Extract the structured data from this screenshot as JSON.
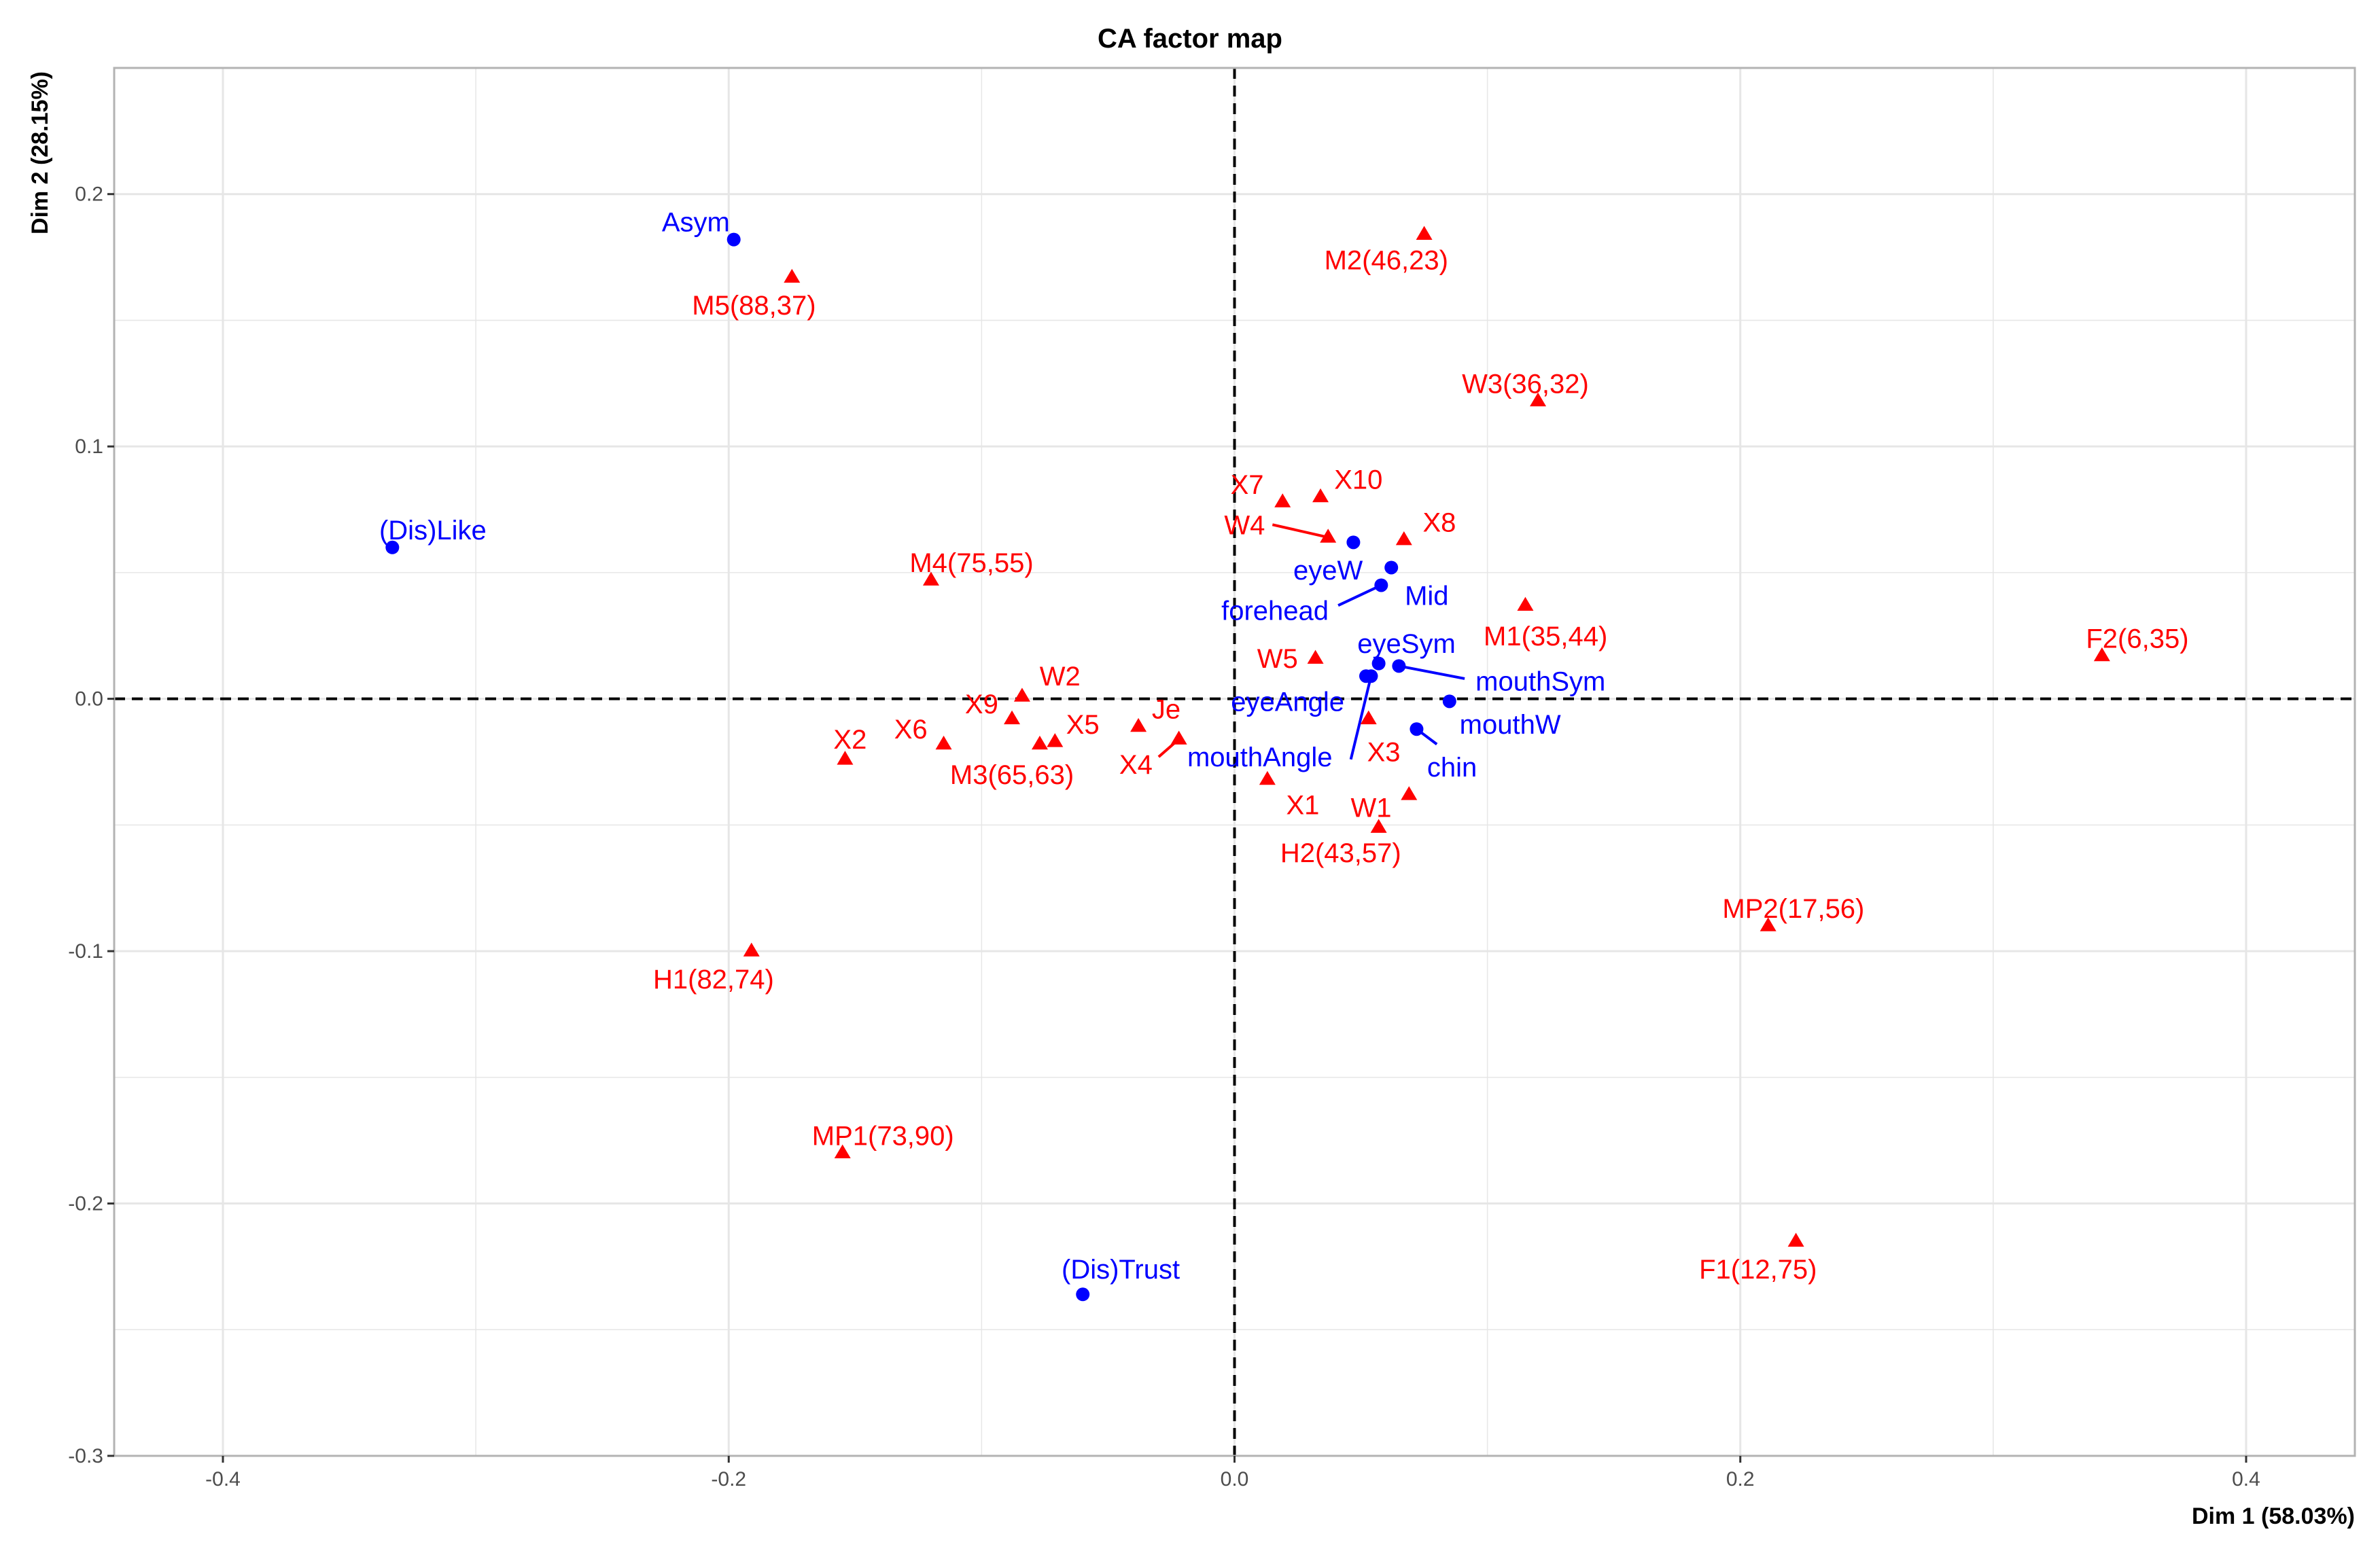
{
  "chart_data": {
    "type": "scatter",
    "title": "CA factor map",
    "xlabel": "Dim 1 (58.03%)",
    "ylabel": "Dim 2 (28.15%)",
    "xlim": [
      -0.443,
      0.443
    ],
    "ylim": [
      -0.3,
      0.25
    ],
    "x_ticks": [
      -0.4,
      -0.2,
      0.0,
      0.2,
      0.4
    ],
    "x_tick_labels": [
      "-0.4",
      "-0.2",
      "0.0",
      "0.2",
      "0.4"
    ],
    "y_ticks": [
      -0.3,
      -0.2,
      -0.1,
      0.0,
      0.1,
      0.2
    ],
    "y_tick_labels": [
      "-0.3",
      "-0.2",
      "-0.1",
      "0.0",
      "0.1",
      "0.2"
    ],
    "grid": true,
    "reference_lines": {
      "x": 0,
      "y": 0,
      "style": "dashed"
    },
    "colors": {
      "rows": "#ff0000",
      "columns": "#0000ff",
      "grid": "#e6e6e6",
      "border": "#b3b3b3",
      "tick_text": "#4d4d4d"
    },
    "series": [
      {
        "name": "rows",
        "marker": "triangle",
        "color": "#ff0000",
        "points": [
          {
            "label": "M2(46,23)",
            "x": 0.075,
            "y": 0.184,
            "lx": 0.06,
            "ly": 0.174
          },
          {
            "label": "M5(88,37)",
            "x": -0.175,
            "y": 0.167,
            "lx": -0.19,
            "ly": 0.156
          },
          {
            "label": "W3(36,32)",
            "x": 0.12,
            "y": 0.118,
            "lx": 0.115,
            "ly": 0.125
          },
          {
            "label": "X7",
            "x": 0.019,
            "y": 0.078,
            "lx": 0.005,
            "ly": 0.085
          },
          {
            "label": "X10",
            "x": 0.034,
            "y": 0.08,
            "lx": 0.049,
            "ly": 0.087
          },
          {
            "label": "W4",
            "x": 0.037,
            "y": 0.064,
            "lx": 0.004,
            "ly": 0.069,
            "cx": 0.015,
            "cy": 0.069
          },
          {
            "label": "X8",
            "x": 0.067,
            "y": 0.063,
            "lx": 0.081,
            "ly": 0.07
          },
          {
            "label": "M4(75,55)",
            "x": -0.12,
            "y": 0.047,
            "lx": -0.104,
            "ly": 0.054
          },
          {
            "label": "M1(35,44)",
            "x": 0.115,
            "y": 0.037,
            "lx": 0.123,
            "ly": 0.025
          },
          {
            "label": "F2(6,35)",
            "x": 0.343,
            "y": 0.017,
            "lx": 0.357,
            "ly": 0.024
          },
          {
            "label": "W5",
            "x": 0.032,
            "y": 0.016,
            "lx": 0.017,
            "ly": 0.016
          },
          {
            "label": "W2",
            "x": -0.084,
            "y": 0.001,
            "lx": -0.069,
            "ly": 0.009
          },
          {
            "label": "X9",
            "x": -0.088,
            "y": -0.008,
            "lx": -0.1,
            "ly": -0.002
          },
          {
            "label": "Je",
            "x": -0.038,
            "y": -0.011,
            "lx": -0.027,
            "ly": -0.004
          },
          {
            "label": "X5",
            "x": -0.071,
            "y": -0.017,
            "lx": -0.06,
            "ly": -0.01
          },
          {
            "label": "X6",
            "x": -0.115,
            "y": -0.018,
            "lx": -0.128,
            "ly": -0.012
          },
          {
            "label": "X2",
            "x": -0.154,
            "y": -0.024,
            "lx": -0.152,
            "ly": -0.016
          },
          {
            "label": "M3(65,63)",
            "x": -0.077,
            "y": -0.018,
            "lx": -0.088,
            "ly": -0.03
          },
          {
            "label": "X4",
            "x": -0.022,
            "y": -0.016,
            "lx": -0.039,
            "ly": -0.026,
            "cx": -0.03,
            "cy": -0.023
          },
          {
            "label": "X3",
            "x": 0.053,
            "y": -0.008,
            "lx": 0.059,
            "ly": -0.021
          },
          {
            "label": "X1",
            "x": 0.013,
            "y": -0.032,
            "lx": 0.027,
            "ly": -0.042
          },
          {
            "label": "W1",
            "x": 0.069,
            "y": -0.038,
            "lx": 0.054,
            "ly": -0.043
          },
          {
            "label": "H2(43,57)",
            "x": 0.057,
            "y": -0.051,
            "lx": 0.042,
            "ly": -0.061
          },
          {
            "label": "MP2(17,56)",
            "x": 0.211,
            "y": -0.09,
            "lx": 0.221,
            "ly": -0.083
          },
          {
            "label": "H1(82,74)",
            "x": -0.191,
            "y": -0.1,
            "lx": -0.206,
            "ly": -0.111
          },
          {
            "label": "MP1(73,90)",
            "x": -0.155,
            "y": -0.18,
            "lx": -0.139,
            "ly": -0.173
          },
          {
            "label": "F1(12,75)",
            "x": 0.222,
            "y": -0.215,
            "lx": 0.207,
            "ly": -0.226
          }
        ]
      },
      {
        "name": "columns",
        "marker": "circle",
        "color": "#0000ff",
        "points": [
          {
            "label": "Asym",
            "x": -0.198,
            "y": 0.182,
            "lx": -0.213,
            "ly": 0.189
          },
          {
            "label": "(Dis)Like",
            "x": -0.333,
            "y": 0.06,
            "lx": -0.317,
            "ly": 0.067
          },
          {
            "label": "eyeW",
            "x": 0.047,
            "y": 0.062,
            "lx": 0.037,
            "ly": 0.051
          },
          {
            "label": "Mid",
            "x": 0.062,
            "y": 0.052,
            "lx": 0.076,
            "ly": 0.041
          },
          {
            "label": "forehead",
            "x": 0.058,
            "y": 0.045,
            "lx": 0.016,
            "ly": 0.035,
            "cx": 0.041,
            "cy": 0.037
          },
          {
            "label": "eyeSym",
            "x": 0.057,
            "y": 0.014,
            "lx": 0.068,
            "ly": 0.022
          },
          {
            "label": "mouthSym",
            "x": 0.065,
            "y": 0.013,
            "lx": 0.121,
            "ly": 0.007,
            "cx": 0.091,
            "cy": 0.008
          },
          {
            "label": "eyeAngle",
            "x": 0.052,
            "y": 0.009,
            "lx": 0.021,
            "ly": -0.001
          },
          {
            "label": "mouthW",
            "x": 0.085,
            "y": -0.001,
            "lx": 0.109,
            "ly": -0.01
          },
          {
            "label": "chin",
            "x": 0.072,
            "y": -0.012,
            "lx": 0.086,
            "ly": -0.027,
            "cx": 0.08,
            "cy": -0.018
          },
          {
            "label": "mouthAngle",
            "x": 0.054,
            "y": 0.009,
            "lx": 0.01,
            "ly": -0.023,
            "cx": 0.046,
            "cy": -0.024
          },
          {
            "label": "(Dis)Trust",
            "x": -0.06,
            "y": -0.236,
            "lx": -0.045,
            "ly": -0.226
          }
        ]
      }
    ]
  }
}
